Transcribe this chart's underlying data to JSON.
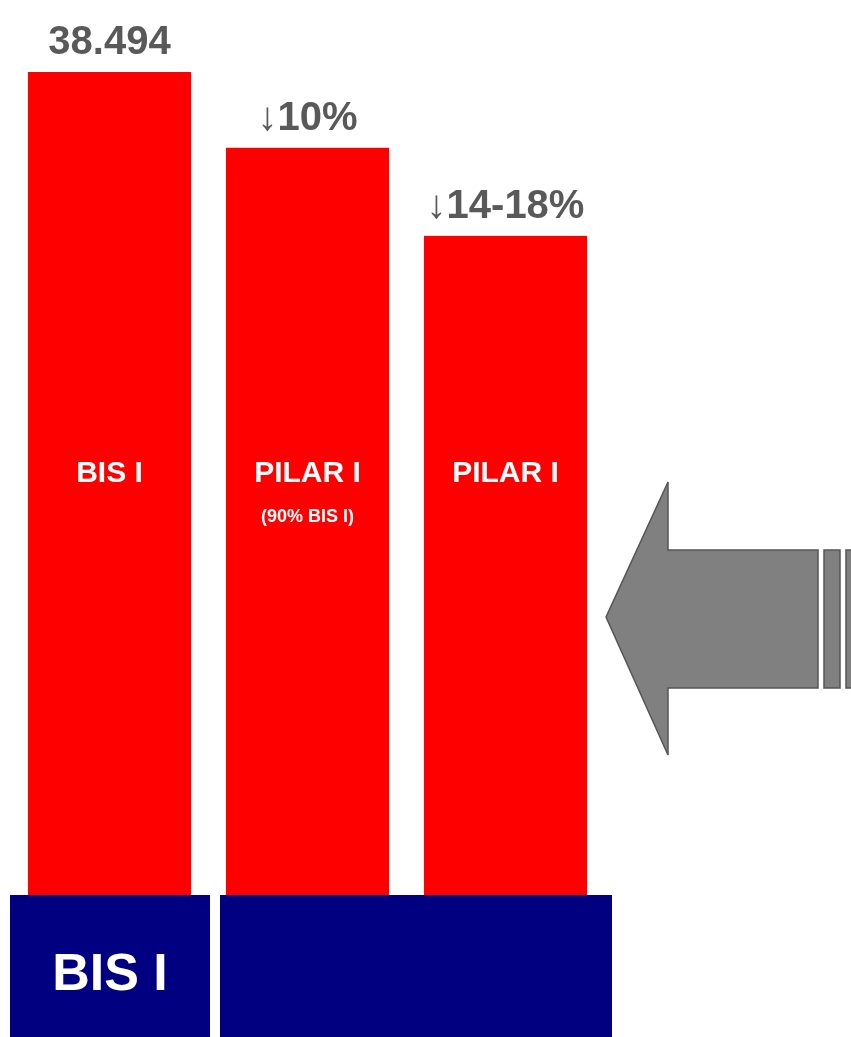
{
  "chart_data": {
    "type": "bar",
    "categories": [
      "BIS I",
      "PILAR I",
      "PILAR I"
    ],
    "values": [
      38.494,
      34.95,
      30.83
    ],
    "color": "#ff0000",
    "value_labels": [
      "38.494",
      null,
      null
    ],
    "annotations": [
      "↓10%",
      "↓14-18%",
      "(90% BIS I)",
      "BIS I"
    ]
  }
}
